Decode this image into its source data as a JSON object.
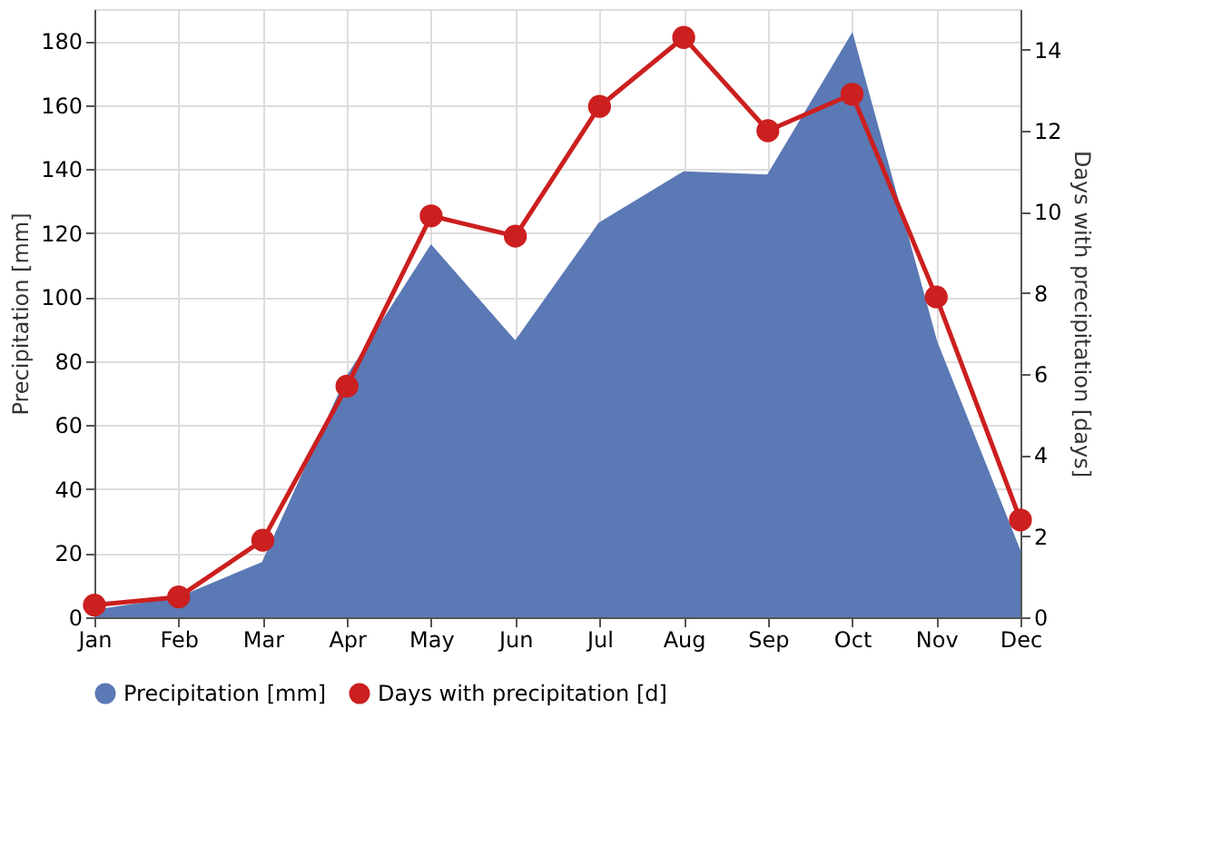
{
  "chart_data": {
    "type": "area",
    "categories": [
      "Jan",
      "Feb",
      "Mar",
      "Apr",
      "May",
      "Jun",
      "Jul",
      "Aug",
      "Sep",
      "Oct",
      "Nov",
      "Dec"
    ],
    "ylabel": "Precipitation [mm]",
    "y2label": "Days with precipitation [days]",
    "ylim": [
      0,
      190
    ],
    "yticks": [
      0,
      20,
      40,
      60,
      80,
      100,
      120,
      140,
      160,
      180
    ],
    "y2lim": [
      0,
      15
    ],
    "y2ticks": [
      0,
      2,
      4,
      6,
      8,
      10,
      12,
      14
    ],
    "grid": true,
    "legend": "bottom",
    "series": [
      {
        "name": "Precipitation [mm]",
        "color": "#5b79b5",
        "values": [
          2,
          6,
          17,
          75,
          116,
          86,
          123,
          139,
          138,
          182,
          86,
          20
        ]
      },
      {
        "name": "Days with precipitation [d]",
        "type": "line",
        "axis": "y2",
        "color": "#cc1f1f",
        "marker": "circle",
        "values": [
          0.3,
          0.5,
          1.9,
          5.7,
          9.9,
          9.4,
          12.6,
          14.3,
          12.0,
          12.9,
          7.9,
          2.4
        ]
      }
    ]
  }
}
